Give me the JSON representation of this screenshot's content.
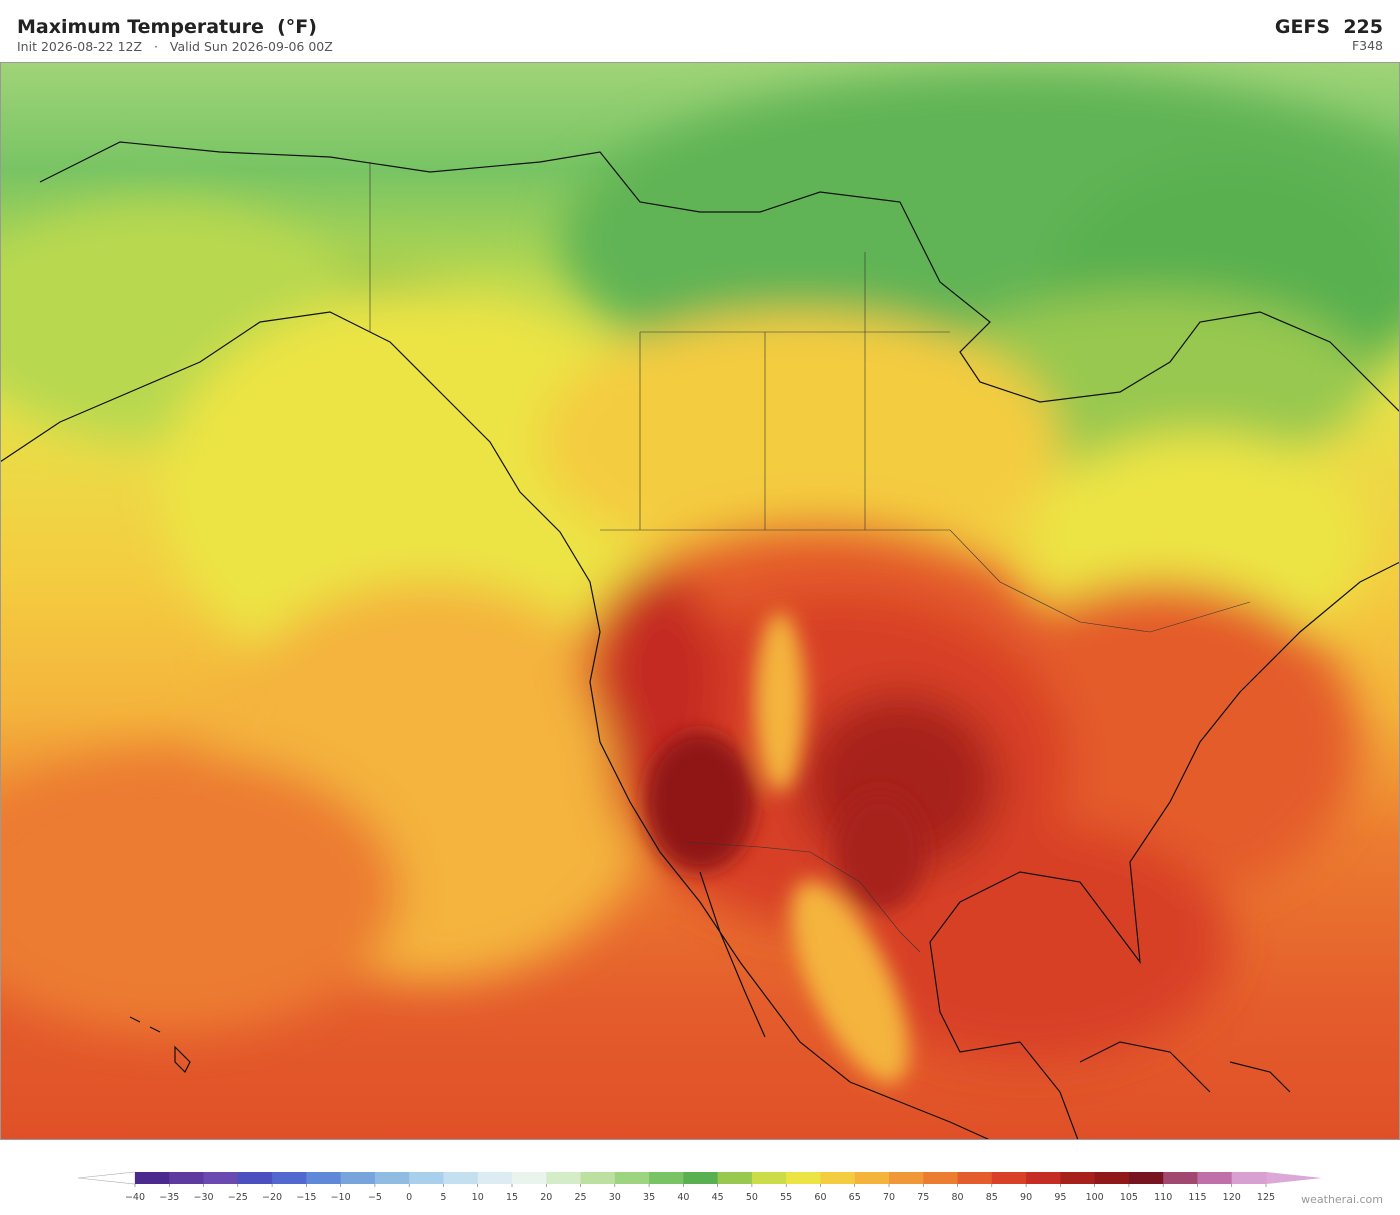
{
  "header": {
    "title": "Maximum Temperature  (°F)",
    "init": "Init 2026-08-22 12Z",
    "separator": "·",
    "valid": "Valid Sun 2026-09-06 00Z",
    "model": "GEFS  225",
    "forecast_hour": "F348"
  },
  "colorbar": {
    "ticks": [
      {
        "value": -40,
        "label": "−40"
      },
      {
        "value": -35,
        "label": "−35"
      },
      {
        "value": -30,
        "label": "−30"
      },
      {
        "value": -25,
        "label": "−25"
      },
      {
        "value": -20,
        "label": "−20"
      },
      {
        "value": -15,
        "label": "−15"
      },
      {
        "value": -10,
        "label": "−10"
      },
      {
        "value": -5,
        "label": "−5"
      },
      0,
      5,
      10,
      15,
      20,
      25,
      30,
      35,
      40,
      45,
      50,
      55,
      60,
      65,
      70,
      75,
      80,
      85,
      90,
      95,
      100,
      105,
      110,
      115,
      120,
      125
    ],
    "colors": [
      "#4a2a8c",
      "#5e3a9e",
      "#6a4ab0",
      "#4c4fc0",
      "#5068d0",
      "#6088d8",
      "#78a4dc",
      "#90bce4",
      "#a8d0ec",
      "#c4e0f0",
      "#dcecf2",
      "#e8f4ec",
      "#d4ecc8",
      "#bce0a0",
      "#9cd480",
      "#78c464",
      "#58b050",
      "#98c850",
      "#cadc48",
      "#ece444",
      "#f4cc40",
      "#f4b43c",
      "#f09838",
      "#ec7c30",
      "#e45c2c",
      "#d84028",
      "#c42c24",
      "#a8201c",
      "#901818",
      "#781420",
      "#a04870",
      "#c070a8",
      "#d8a0d0"
    ],
    "under_color": "#ffffff",
    "over_color": "#dca8d8"
  },
  "credit": "weatherai.com"
}
